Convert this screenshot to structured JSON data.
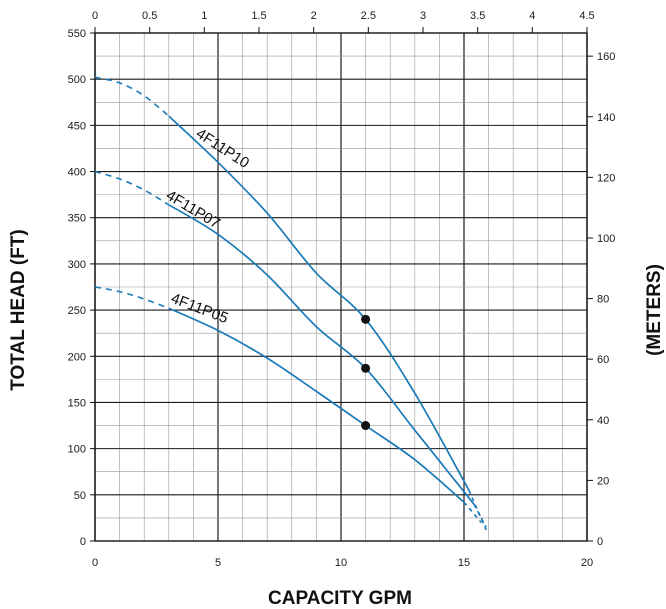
{
  "chart_data": {
    "type": "line",
    "xlabel": "CAPACITY GPM",
    "ylabel": "TOTAL HEAD (FT)",
    "y2label": "(METERS)",
    "xlim": [
      0,
      20
    ],
    "ylim": [
      0,
      550
    ],
    "x_ticks": [
      "0",
      "5",
      "10",
      "15",
      "20"
    ],
    "y_ticks": [
      "0",
      "50",
      "100",
      "150",
      "200",
      "250",
      "300",
      "350",
      "400",
      "450",
      "500",
      "550"
    ],
    "top_axis": {
      "range": [
        0,
        4.5
      ],
      "ticks": [
        "0",
        "0.5",
        "1",
        "1.5",
        "2",
        "2.5",
        "3",
        "3.5",
        "4",
        "4.5"
      ]
    },
    "right_axis": {
      "range": [
        0,
        167.64
      ],
      "ticks": [
        "0",
        "20",
        "40",
        "60",
        "80",
        "100",
        "120",
        "140",
        "160"
      ]
    },
    "grid": true,
    "line_color": "#1a7ab8",
    "series": [
      {
        "name": "4F11P10",
        "dashed": [
          [
            0,
            502
          ],
          [
            1,
            496
          ],
          [
            2,
            482
          ],
          [
            3,
            460
          ]
        ],
        "solid": [
          [
            3,
            460
          ],
          [
            5,
            410
          ],
          [
            7,
            355
          ],
          [
            9,
            290
          ],
          [
            11,
            240
          ],
          [
            13,
            160
          ],
          [
            15.2,
            55
          ]
        ],
        "dashed_end": [
          [
            15.2,
            55
          ],
          [
            15.9,
            12
          ]
        ],
        "marker": [
          11,
          240
        ]
      },
      {
        "name": "4F11P07",
        "dashed": [
          [
            0,
            400
          ],
          [
            1,
            392
          ],
          [
            2,
            380
          ],
          [
            3,
            364
          ]
        ],
        "solid": [
          [
            3,
            364
          ],
          [
            5,
            332
          ],
          [
            7,
            288
          ],
          [
            9,
            232
          ],
          [
            11,
            187
          ],
          [
            13,
            120
          ],
          [
            15.4,
            40
          ]
        ],
        "dashed_end": [
          [
            15.4,
            40
          ],
          [
            15.9,
            15
          ]
        ],
        "marker": [
          11,
          187
        ]
      },
      {
        "name": "4F11P05",
        "dashed": [
          [
            0,
            275
          ],
          [
            1,
            270
          ],
          [
            2,
            262
          ],
          [
            3,
            252
          ]
        ],
        "solid": [
          [
            3,
            252
          ],
          [
            5,
            228
          ],
          [
            7,
            198
          ],
          [
            9,
            162
          ],
          [
            11,
            125
          ],
          [
            13,
            88
          ],
          [
            15,
            42
          ]
        ],
        "dashed_end": [
          [
            15,
            42
          ],
          [
            15.7,
            20
          ]
        ],
        "marker": [
          11,
          125
        ]
      }
    ]
  }
}
